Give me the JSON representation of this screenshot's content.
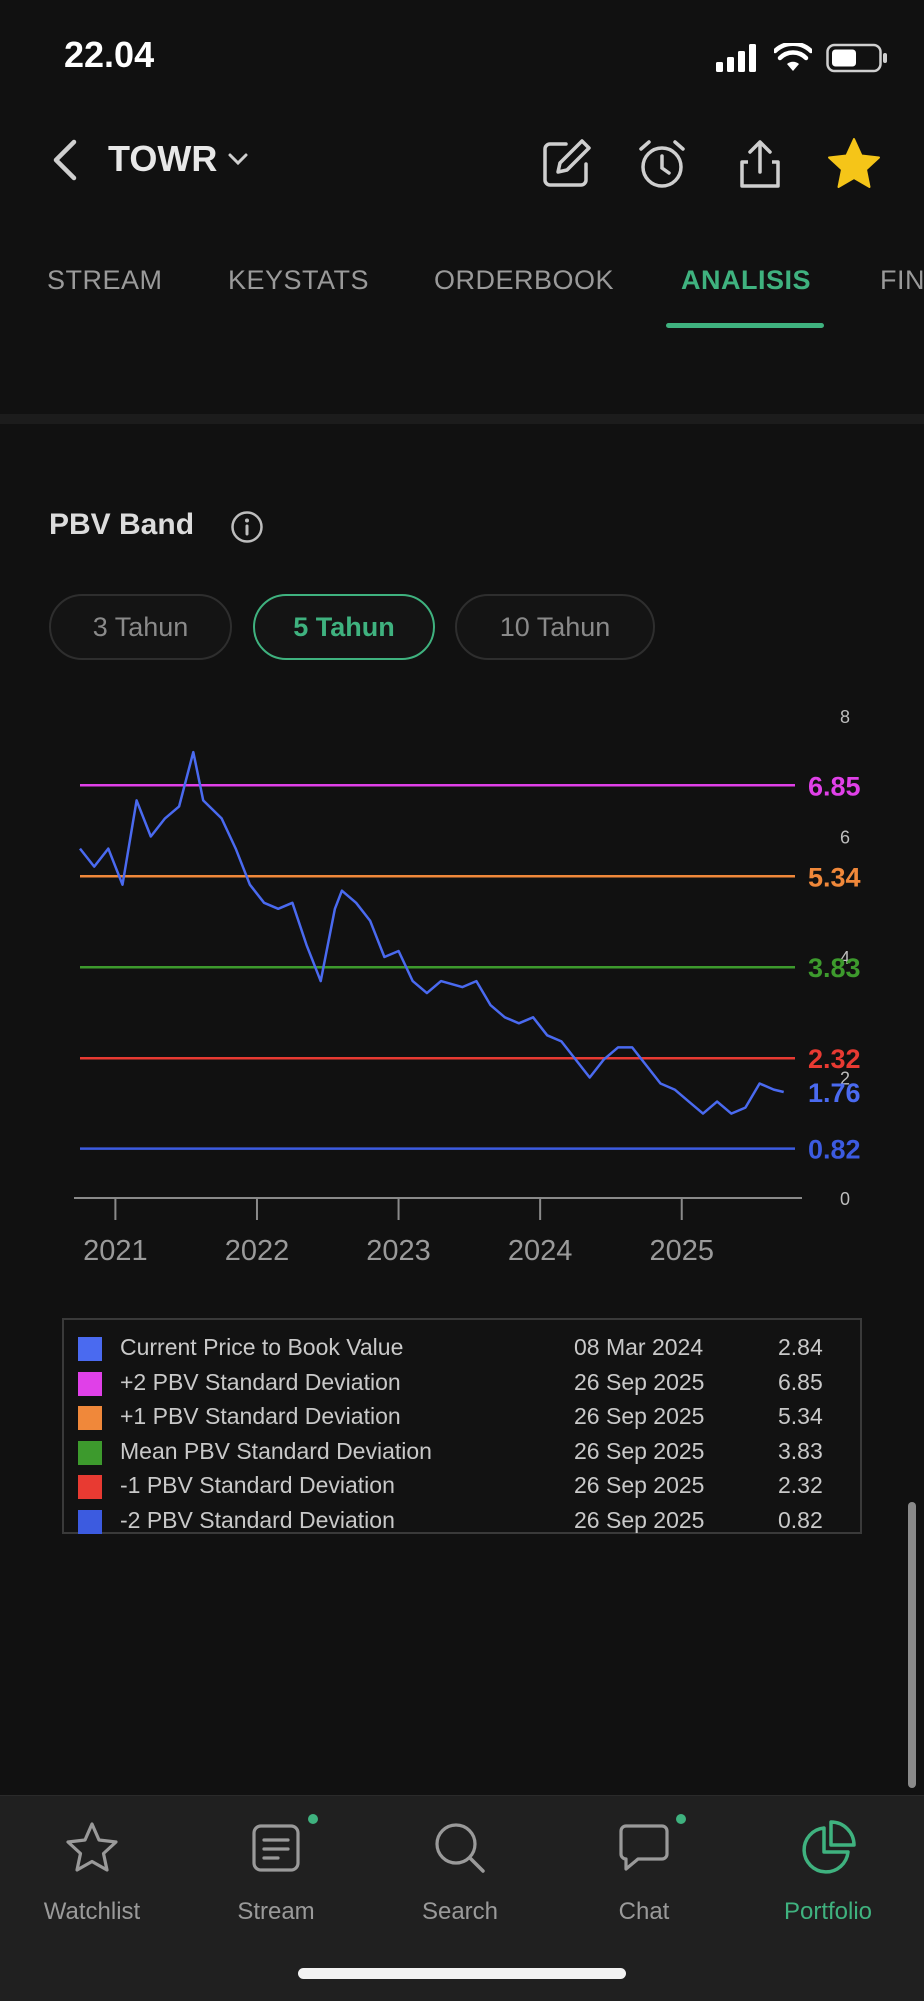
{
  "status_bar": {
    "time": "22.04"
  },
  "header": {
    "ticker": "TOWR"
  },
  "tabs": [
    {
      "label": "STREAM",
      "active": false
    },
    {
      "label": "KEYSTATS",
      "active": false
    },
    {
      "label": "ORDERBOOK",
      "active": false
    },
    {
      "label": "ANALISIS",
      "active": true
    },
    {
      "label": "FIN",
      "active": false
    }
  ],
  "section": {
    "title": "PBV Band",
    "periods": [
      {
        "label": "3 Tahun",
        "active": false
      },
      {
        "label": "5 Tahun",
        "active": true
      },
      {
        "label": "10 Tahun",
        "active": false
      }
    ]
  },
  "chart_data": {
    "type": "line",
    "xlabel": "",
    "ylabel": "",
    "xlim": [
      2020.75,
      2025.8
    ],
    "ylim": [
      0,
      8
    ],
    "x_ticks": [
      "2021",
      "2022",
      "2023",
      "2024",
      "2025"
    ],
    "x_tick_values": [
      2021,
      2022,
      2023,
      2024,
      2025
    ],
    "y_ticks": [
      "0",
      "2",
      "4",
      "6",
      "8"
    ],
    "y_tick_values": [
      0,
      2,
      4,
      6,
      8
    ],
    "bands": [
      {
        "label": "6.85",
        "value": 6.85,
        "color": "#e040e8"
      },
      {
        "label": "5.34",
        "value": 5.34,
        "color": "#f0883a"
      },
      {
        "label": "3.83",
        "value": 3.83,
        "color": "#3d9a2d"
      },
      {
        "label": "2.32",
        "value": 2.32,
        "color": "#e83a32"
      },
      {
        "label": "0.82",
        "value": 0.82,
        "color": "#3c5be0"
      }
    ],
    "current": {
      "label": "1.76",
      "value": 1.76,
      "color": "#4a6af0"
    },
    "series": [
      {
        "color": "#4a6af0",
        "x": [
          2020.75,
          2020.85,
          2020.95,
          2021.05,
          2021.15,
          2021.25,
          2021.35,
          2021.45,
          2021.55,
          2021.62,
          2021.75,
          2021.85,
          2021.95,
          2022.05,
          2022.15,
          2022.25,
          2022.35,
          2022.45,
          2022.55,
          2022.6,
          2022.7,
          2022.8,
          2022.9,
          2023.0,
          2023.1,
          2023.2,
          2023.3,
          2023.45,
          2023.55,
          2023.65,
          2023.75,
          2023.85,
          2023.95,
          2024.05,
          2024.15,
          2024.25,
          2024.35,
          2024.45,
          2024.55,
          2024.65,
          2024.75,
          2024.85,
          2024.95,
          2025.05,
          2025.15,
          2025.25,
          2025.35,
          2025.45,
          2025.55,
          2025.65,
          2025.72
        ],
        "y": [
          5.8,
          5.5,
          5.8,
          5.2,
          6.6,
          6.0,
          6.3,
          6.5,
          7.4,
          6.6,
          6.3,
          5.8,
          5.2,
          4.9,
          4.8,
          4.9,
          4.2,
          3.6,
          4.8,
          5.1,
          4.9,
          4.6,
          4.0,
          4.1,
          3.6,
          3.4,
          3.6,
          3.5,
          3.6,
          3.2,
          3.0,
          2.9,
          3.0,
          2.7,
          2.6,
          2.3,
          2.0,
          2.3,
          2.5,
          2.5,
          2.2,
          1.9,
          1.8,
          1.6,
          1.4,
          1.6,
          1.4,
          1.5,
          1.9,
          1.8,
          1.76
        ]
      }
    ]
  },
  "legend": [
    {
      "name": "Current Price to Book Value",
      "date": "08 Mar 2024",
      "value": "2.84",
      "color": "#4a6af0"
    },
    {
      "name": "+2 PBV Standard Deviation",
      "date": "26 Sep 2025",
      "value": "6.85",
      "color": "#e040e8"
    },
    {
      "name": "+1 PBV Standard Deviation",
      "date": "26 Sep 2025",
      "value": "5.34",
      "color": "#f0883a"
    },
    {
      "name": "Mean PBV Standard Deviation",
      "date": "26 Sep 2025",
      "value": "3.83",
      "color": "#3d9a2d"
    },
    {
      "name": "-1 PBV Standard Deviation",
      "date": "26 Sep 2025",
      "value": "2.32",
      "color": "#e83a32"
    },
    {
      "name": "-2 PBV Standard Deviation",
      "date": "26 Sep 2025",
      "value": "0.82",
      "color": "#3c5be0"
    }
  ],
  "bottom_nav": [
    {
      "label": "Watchlist",
      "icon": "star-outline-icon",
      "active": false,
      "dot": false
    },
    {
      "label": "Stream",
      "icon": "document-icon",
      "active": false,
      "dot": true
    },
    {
      "label": "Search",
      "icon": "search-icon",
      "active": false,
      "dot": false
    },
    {
      "label": "Chat",
      "icon": "chat-bubble-icon",
      "active": false,
      "dot": true
    },
    {
      "label": "Portfolio",
      "icon": "pie-chart-icon",
      "active": true,
      "dot": false
    }
  ],
  "colors": {
    "accent": "#3fb27f",
    "background": "#111111",
    "star": "#f5c518"
  }
}
